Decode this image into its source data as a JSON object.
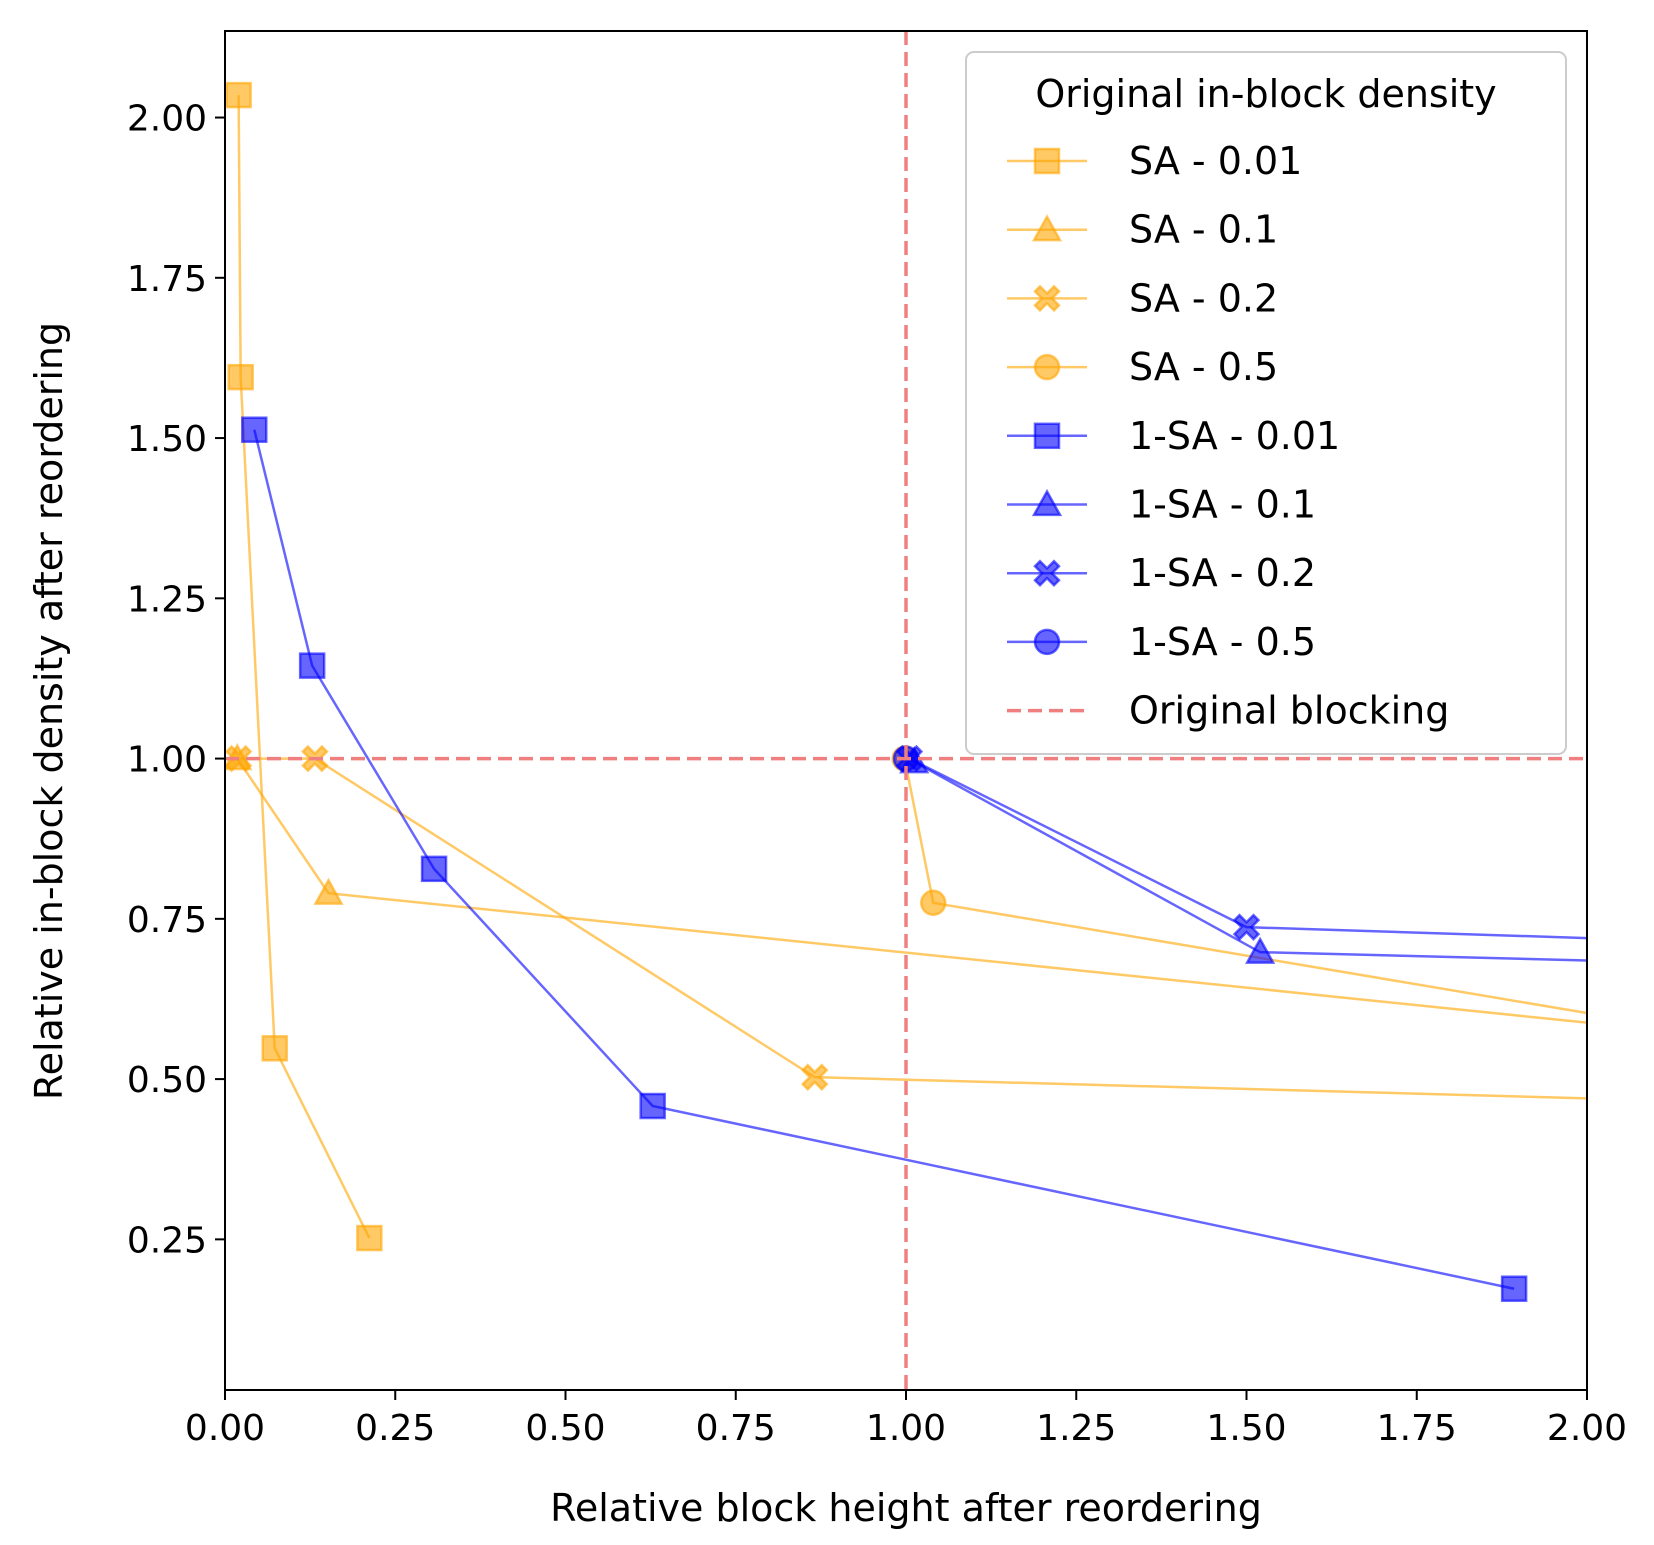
{
  "chart_data": {
    "type": "line",
    "xlabel": "Relative block height after reordering",
    "ylabel": "Relative in-block density after reordering",
    "xlim": [
      0,
      2
    ],
    "ylim": [
      0.015,
      2.135
    ],
    "xticks": [
      "0.00",
      "0.25",
      "0.50",
      "0.75",
      "1.00",
      "1.25",
      "1.50",
      "1.75",
      "2.00"
    ],
    "yticks": [
      "0.25",
      "0.50",
      "0.75",
      "1.00",
      "1.25",
      "1.50",
      "1.75",
      "2.00"
    ],
    "grid": false,
    "legend": {
      "title": "Original in-block density",
      "placement": "top-right"
    },
    "colors": {
      "SA": "#ffa500",
      "1-SA": "#0000ff",
      "reference": "#f08080"
    },
    "series": [
      {
        "name": "SA - 0.01",
        "group": "SA",
        "marker": "square",
        "points": [
          [
            0.02,
            2.035
          ],
          [
            0.023,
            1.595
          ],
          [
            0.073,
            0.548
          ],
          [
            0.212,
            0.252
          ]
        ]
      },
      {
        "name": "SA - 0.1",
        "group": "SA",
        "marker": "triangle",
        "points": [
          [
            0.018,
            1.0
          ],
          [
            0.152,
            0.79
          ],
          [
            2.0,
            0.588
          ]
        ]
      },
      {
        "name": "SA - 0.2",
        "group": "SA",
        "marker": "x",
        "points": [
          [
            0.02,
            1.0
          ],
          [
            0.132,
            1.0
          ],
          [
            0.866,
            0.503
          ],
          [
            2.0,
            0.47
          ]
        ]
      },
      {
        "name": "SA - 0.5",
        "group": "SA",
        "marker": "circle",
        "points": [
          [
            0.998,
            1.0
          ],
          [
            1.04,
            0.775
          ],
          [
            2.0,
            0.603
          ]
        ]
      },
      {
        "name": "1-SA - 0.01",
        "group": "1-SA",
        "marker": "square",
        "points": [
          [
            0.043,
            1.513
          ],
          [
            0.128,
            1.145
          ],
          [
            0.307,
            0.828
          ],
          [
            0.628,
            0.458
          ],
          [
            1.893,
            0.173
          ]
        ]
      },
      {
        "name": "1-SA - 0.1",
        "group": "1-SA",
        "marker": "triangle",
        "points": [
          [
            1.012,
            0.995
          ],
          [
            1.52,
            0.698
          ],
          [
            2.0,
            0.685
          ]
        ]
      },
      {
        "name": "1-SA - 0.2",
        "group": "1-SA",
        "marker": "x",
        "points": [
          [
            1.005,
            1.0
          ],
          [
            1.5,
            0.737
          ],
          [
            2.0,
            0.72
          ]
        ]
      },
      {
        "name": "1-SA - 0.5",
        "group": "1-SA",
        "marker": "circle",
        "points": [
          [
            1.0,
            1.0
          ]
        ]
      }
    ],
    "reference_lines": {
      "name": "Original blocking",
      "x": 1.0,
      "y": 1.0,
      "style": "dashed"
    }
  }
}
